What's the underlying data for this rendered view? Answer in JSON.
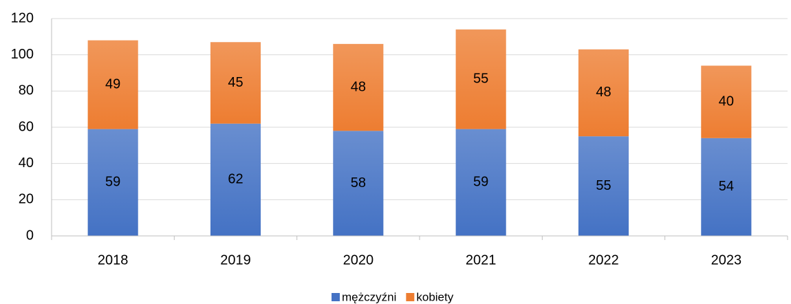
{
  "chart_data": {
    "type": "stacked_bar",
    "categories": [
      "2018",
      "2019",
      "2020",
      "2021",
      "2022",
      "2023"
    ],
    "series": [
      {
        "name": "mężczyźni",
        "color": "#4472c4",
        "values": [
          59,
          62,
          58,
          59,
          55,
          54
        ]
      },
      {
        "name": "kobiety",
        "color": "#ed7d31",
        "values": [
          49,
          45,
          48,
          55,
          48,
          40
        ]
      }
    ],
    "ylim": [
      0,
      120
    ],
    "yticks": [
      0,
      20,
      40,
      60,
      80,
      100,
      120
    ],
    "grid": true,
    "legend": "bottom"
  }
}
